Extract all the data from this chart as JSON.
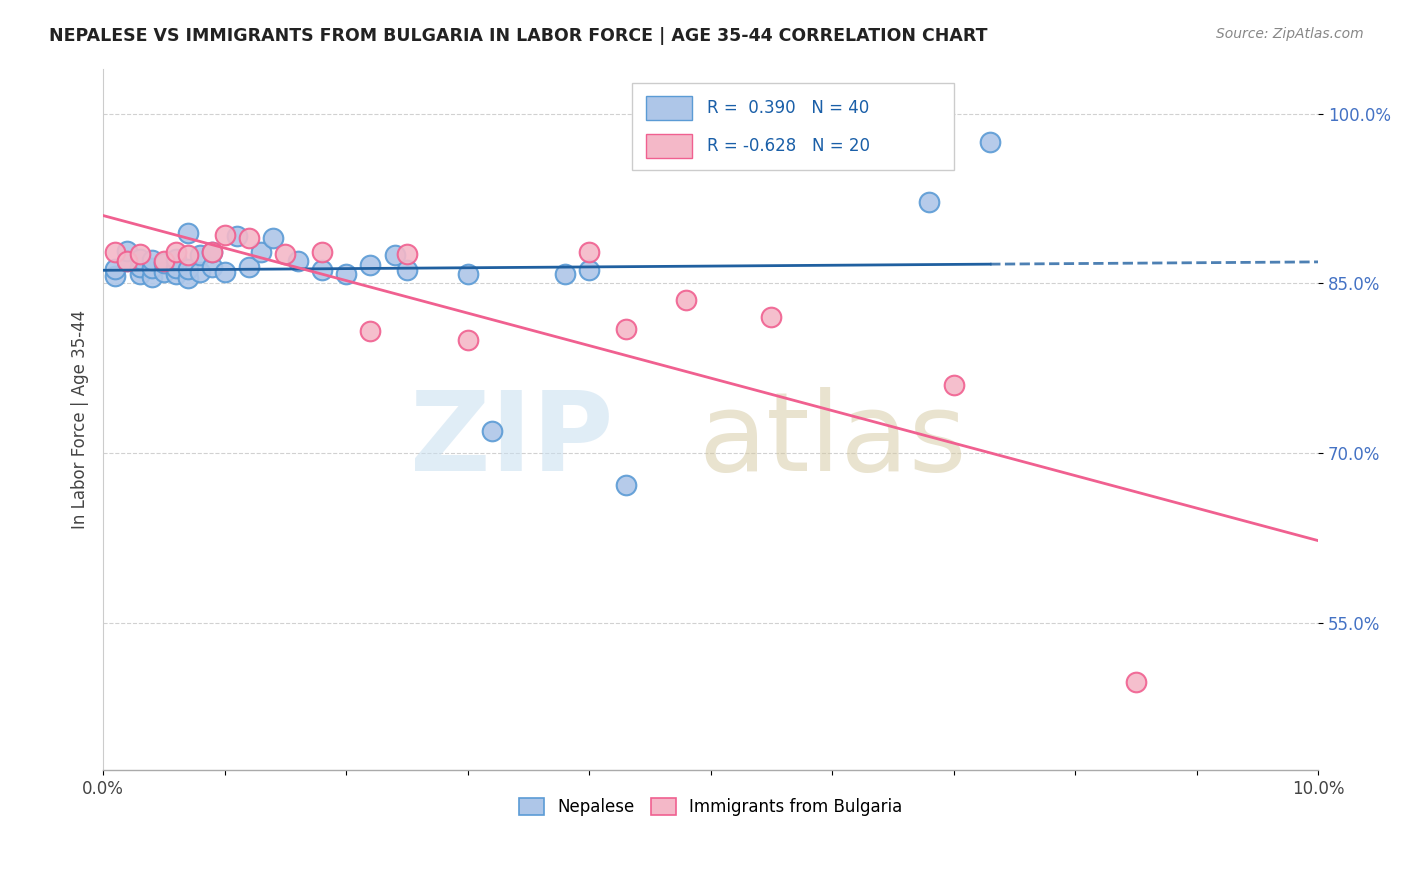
{
  "title": "NEPALESE VS IMMIGRANTS FROM BULGARIA IN LABOR FORCE | AGE 35-44 CORRELATION CHART",
  "source": "Source: ZipAtlas.com",
  "ylabel": "In Labor Force | Age 35-44",
  "x_min": 0.0,
  "x_max": 0.1,
  "y_min": 0.42,
  "y_max": 1.04,
  "x_ticks": [
    0.0,
    0.01,
    0.02,
    0.03,
    0.04,
    0.05,
    0.06,
    0.07,
    0.08,
    0.09,
    0.1
  ],
  "x_tick_labels": [
    "0.0%",
    "",
    "",
    "",
    "",
    "",
    "",
    "",
    "",
    "",
    "10.0%"
  ],
  "y_ticks": [
    0.55,
    0.7,
    0.85,
    1.0
  ],
  "y_tick_labels": [
    "55.0%",
    "70.0%",
    "85.0%",
    "100.0%"
  ],
  "nepalese_color": "#aec6e8",
  "nepalese_edge_color": "#5b9bd5",
  "bulgaria_color": "#f4b8c8",
  "bulgaria_edge_color": "#f06090",
  "trend_blue": "#2060a0",
  "trend_pink": "#f06090",
  "grid_color": "#cccccc",
  "background_color": "#ffffff",
  "nepalese_x": [
    0.001,
    0.001,
    0.002,
    0.002,
    0.003,
    0.003,
    0.003,
    0.004,
    0.004,
    0.004,
    0.005,
    0.005,
    0.006,
    0.006,
    0.006,
    0.007,
    0.007,
    0.007,
    0.008,
    0.008,
    0.009,
    0.009,
    0.01,
    0.011,
    0.012,
    0.013,
    0.014,
    0.016,
    0.018,
    0.02,
    0.022,
    0.024,
    0.025,
    0.03,
    0.032,
    0.038,
    0.04,
    0.043,
    0.068,
    0.073
  ],
  "nepalese_y": [
    0.857,
    0.863,
    0.87,
    0.879,
    0.858,
    0.865,
    0.872,
    0.856,
    0.864,
    0.871,
    0.86,
    0.868,
    0.858,
    0.864,
    0.872,
    0.855,
    0.863,
    0.895,
    0.86,
    0.875,
    0.865,
    0.878,
    0.86,
    0.892,
    0.865,
    0.878,
    0.89,
    0.87,
    0.862,
    0.858,
    0.866,
    0.875,
    0.862,
    0.858,
    0.72,
    0.858,
    0.862,
    0.672,
    0.922,
    0.975
  ],
  "bulgaria_x": [
    0.001,
    0.002,
    0.003,
    0.005,
    0.006,
    0.007,
    0.009,
    0.01,
    0.012,
    0.015,
    0.018,
    0.022,
    0.025,
    0.03,
    0.04,
    0.043,
    0.048,
    0.055,
    0.07,
    0.085
  ],
  "bulgaria_y": [
    0.878,
    0.87,
    0.876,
    0.87,
    0.878,
    0.875,
    0.878,
    0.893,
    0.89,
    0.876,
    0.878,
    0.808,
    0.876,
    0.8,
    0.878,
    0.81,
    0.835,
    0.82,
    0.76,
    0.498
  ]
}
